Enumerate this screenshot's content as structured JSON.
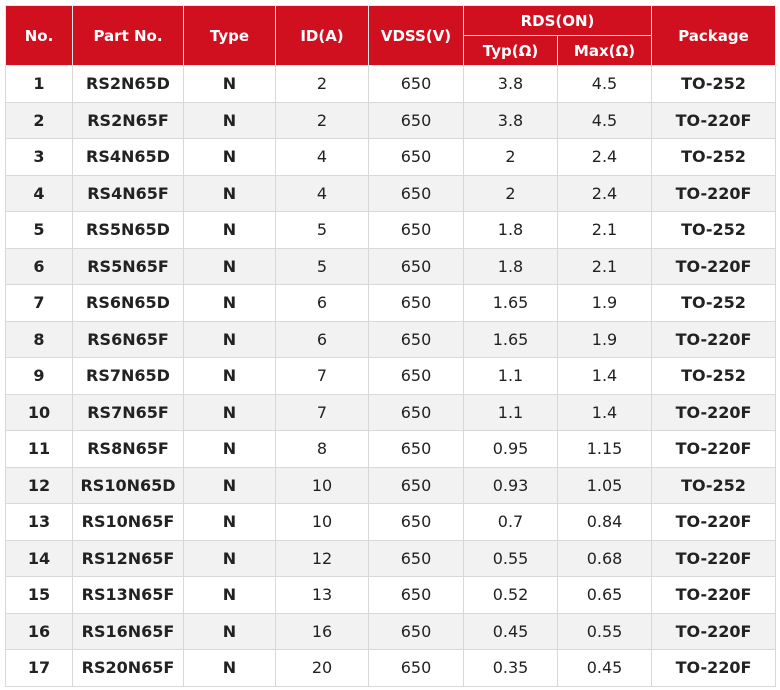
{
  "table": {
    "columns": [
      "No.",
      "Part No.",
      "Type",
      "ID(A)",
      "VDSS(V)",
      "RDS(ON)",
      "Package"
    ],
    "subcolumns": [
      "Typ(Ω)",
      "Max(Ω)"
    ],
    "rows": [
      [
        "1",
        "RS2N65D",
        "N",
        "2",
        "650",
        "3.8",
        "4.5",
        "TO-252"
      ],
      [
        "2",
        "RS2N65F",
        "N",
        "2",
        "650",
        "3.8",
        "4.5",
        "TO-220F"
      ],
      [
        "3",
        "RS4N65D",
        "N",
        "4",
        "650",
        "2",
        "2.4",
        "TO-252"
      ],
      [
        "4",
        "RS4N65F",
        "N",
        "4",
        "650",
        "2",
        "2.4",
        "TO-220F"
      ],
      [
        "5",
        "RS5N65D",
        "N",
        "5",
        "650",
        "1.8",
        "2.1",
        "TO-252"
      ],
      [
        "6",
        "RS5N65F",
        "N",
        "5",
        "650",
        "1.8",
        "2.1",
        "TO-220F"
      ],
      [
        "7",
        "RS6N65D",
        "N",
        "6",
        "650",
        "1.65",
        "1.9",
        "TO-252"
      ],
      [
        "8",
        "RS6N65F",
        "N",
        "6",
        "650",
        "1.65",
        "1.9",
        "TO-220F"
      ],
      [
        "9",
        "RS7N65D",
        "N",
        "7",
        "650",
        "1.1",
        "1.4",
        "TO-252"
      ],
      [
        "10",
        "RS7N65F",
        "N",
        "7",
        "650",
        "1.1",
        "1.4",
        "TO-220F"
      ],
      [
        "11",
        "RS8N65F",
        "N",
        "8",
        "650",
        "0.95",
        "1.15",
        "TO-220F"
      ],
      [
        "12",
        "RS10N65D",
        "N",
        "10",
        "650",
        "0.93",
        "1.05",
        "TO-252"
      ],
      [
        "13",
        "RS10N65F",
        "N",
        "10",
        "650",
        "0.7",
        "0.84",
        "TO-220F"
      ],
      [
        "14",
        "RS12N65F",
        "N",
        "12",
        "650",
        "0.55",
        "0.68",
        "TO-220F"
      ],
      [
        "15",
        "RS13N65F",
        "N",
        "13",
        "650",
        "0.52",
        "0.65",
        "TO-220F"
      ],
      [
        "16",
        "RS16N65F",
        "N",
        "16",
        "650",
        "0.45",
        "0.55",
        "TO-220F"
      ],
      [
        "17",
        "RS20N65F",
        "N",
        "20",
        "650",
        "0.35",
        "0.45",
        "TO-220F"
      ]
    ]
  }
}
